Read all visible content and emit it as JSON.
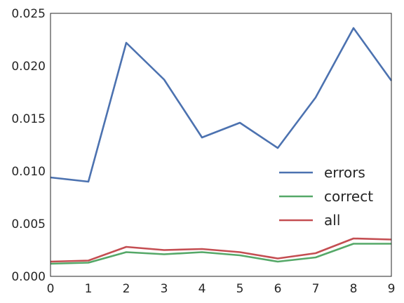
{
  "chart_data": {
    "type": "line",
    "title": "",
    "xlabel": "",
    "ylabel": "",
    "x": [
      0,
      1,
      2,
      3,
      4,
      5,
      6,
      7,
      8,
      9
    ],
    "xlim": [
      0,
      9
    ],
    "ylim": [
      0,
      0.025
    ],
    "x_ticks": [
      "0",
      "1",
      "2",
      "3",
      "4",
      "5",
      "6",
      "7",
      "8",
      "9"
    ],
    "y_ticks": [
      "0.000",
      "0.005",
      "0.010",
      "0.015",
      "0.020",
      "0.025"
    ],
    "grid": false,
    "legend_position": "center-right",
    "series": [
      {
        "name": "errors",
        "color": "#4c72b0",
        "values": [
          0.0094,
          0.009,
          0.0222,
          0.0187,
          0.0132,
          0.0146,
          0.0122,
          0.017,
          0.0236,
          0.0186
        ]
      },
      {
        "name": "correct",
        "color": "#55a868",
        "values": [
          0.0012,
          0.0013,
          0.0023,
          0.0021,
          0.0023,
          0.002,
          0.0014,
          0.0018,
          0.0031,
          0.0031
        ]
      },
      {
        "name": "all",
        "color": "#c44e52",
        "values": [
          0.0014,
          0.0015,
          0.0028,
          0.0025,
          0.0026,
          0.0023,
          0.0017,
          0.0022,
          0.0036,
          0.0035
        ]
      }
    ]
  }
}
